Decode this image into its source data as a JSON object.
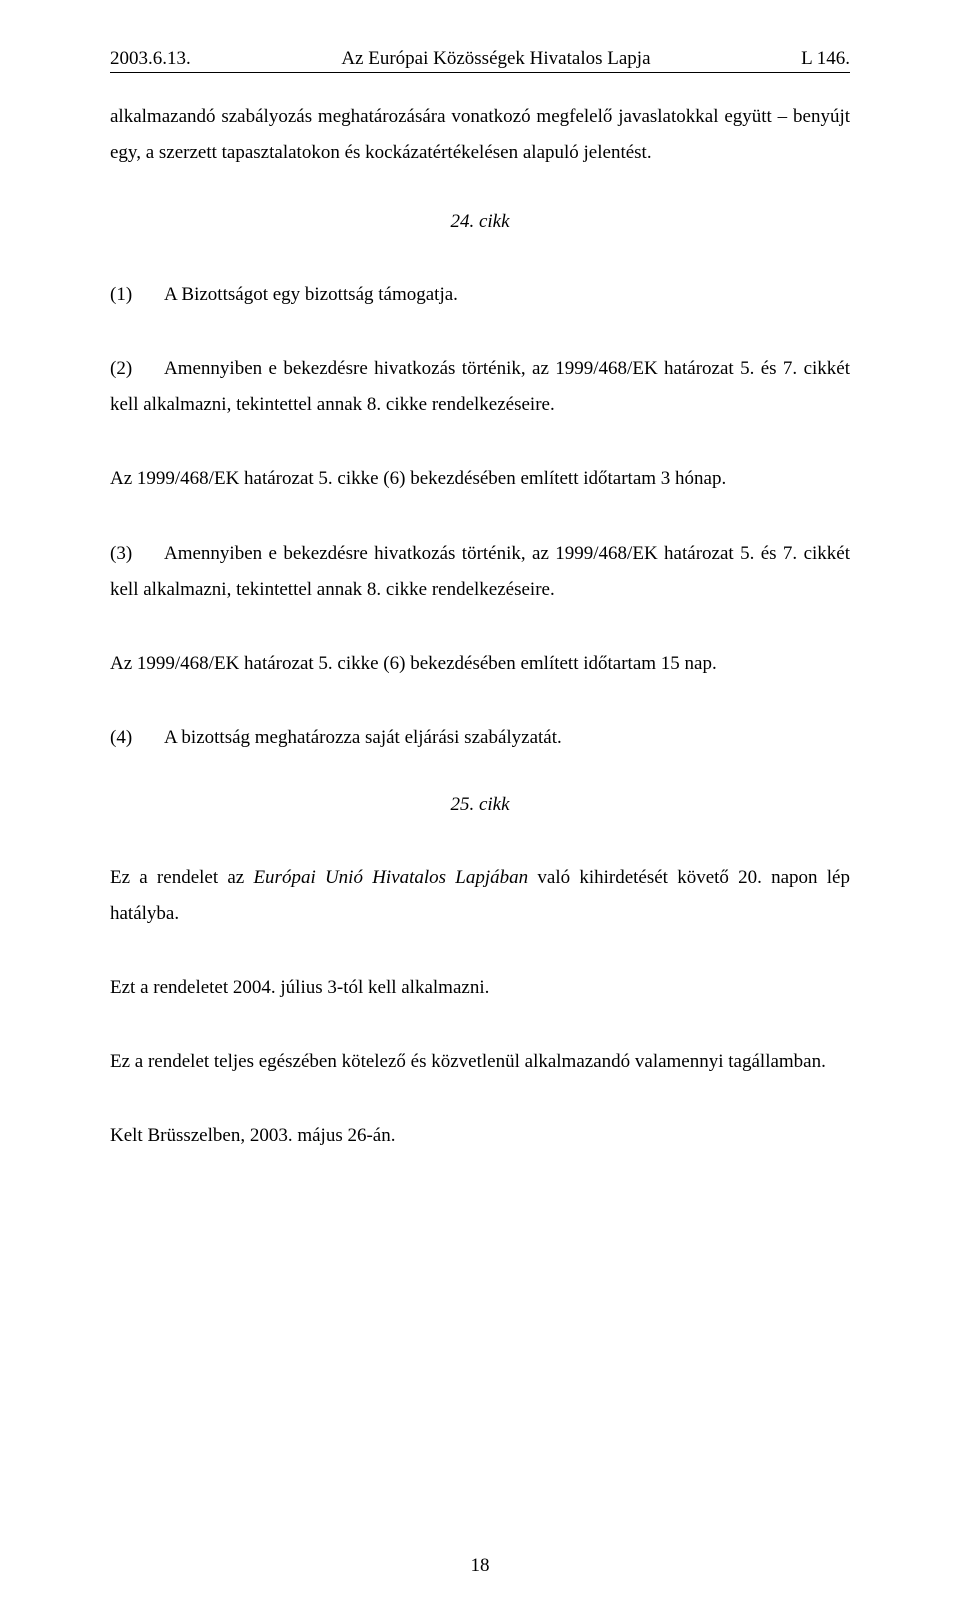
{
  "header": {
    "left": "2003.6.13.",
    "center": "Az Európai Közösségek Hivatalos Lapja",
    "right": "L 146."
  },
  "intro_para": "alkalmazandó szabályozás meghatározására vonatkozó megfelelő javaslatokkal együtt – benyújt egy, a szerzett tapasztalatokon és kockázatértékelésen alapuló jelentést.",
  "article24": {
    "label": "24. cikk",
    "p1_num": "(1)",
    "p1_text": "A Bizottságot egy bizottság támogatja.",
    "p2_num": "(2)",
    "p2_text": "Amennyiben e bekezdésre hivatkozás történik, az 1999/468/EK határozat 5. és 7. cikkét kell alkalmazni, tekintettel annak 8. cikke rendelkezéseire.",
    "p2_after": "Az 1999/468/EK határozat 5. cikke (6) bekezdésében említett időtartam 3 hónap.",
    "p3_num": "(3)",
    "p3_text": "Amennyiben e bekezdésre hivatkozás történik, az 1999/468/EK határozat 5. és 7. cikkét kell alkalmazni, tekintettel annak 8. cikke rendelkezéseire.",
    "p3_after": "Az 1999/468/EK határozat 5. cikke (6) bekezdésében említett időtartam 15 nap.",
    "p4_num": "(4)",
    "p4_text": "A bizottság meghatározza saját eljárási szabályzatát."
  },
  "article25": {
    "label": "25. cikk",
    "p1_pre": "Ez a rendelet az ",
    "p1_italic": "Európai Unió Hivatalos Lapjában",
    "p1_post": " való kihirdetését követő 20. napon lép hatályba.",
    "p2": "Ezt a rendeletet 2004. július 3-tól kell alkalmazni.",
    "p3": "Ez a rendelet teljes egészében kötelező és közvetlenül alkalmazandó valamennyi tagállamban.",
    "p4": "Kelt Brüsszelben, 2003. május 26-án."
  },
  "page_number": "18"
}
